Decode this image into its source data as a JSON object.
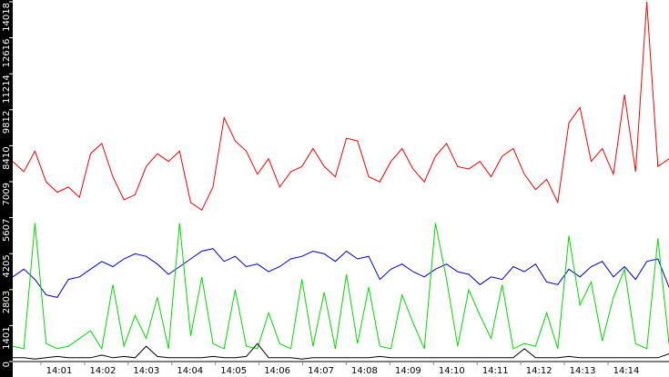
{
  "chart_data": {
    "type": "line",
    "ylim": [
      0,
      14018
    ],
    "yticks": [
      0,
      1401,
      2803,
      4205,
      5607,
      7009,
      8410,
      9812,
      11214,
      12616,
      14018
    ],
    "xtick_labels": [
      "14:01",
      "14:02",
      "14:03",
      "14:04",
      "14:05",
      "14:06",
      "14:07",
      "14:08",
      "14:09",
      "14:10",
      "14:11",
      "14:12",
      "14:13",
      "14:14"
    ],
    "series": [
      {
        "color": "#ff0000",
        "values": [
          7800,
          7400,
          8200,
          7000,
          6600,
          6800,
          6400,
          8100,
          8500,
          7200,
          6300,
          6500,
          7600,
          8100,
          7800,
          8200,
          6200,
          5900,
          6800,
          9500,
          8600,
          8200,
          7300,
          7900,
          6800,
          7400,
          7600,
          8300,
          7600,
          7200,
          8700,
          8600,
          7200,
          7000,
          7800,
          8300,
          7500,
          7000,
          8000,
          8500,
          7600,
          7500,
          7800,
          7200,
          8000,
          8300,
          7300,
          6700,
          7100,
          6200,
          9300,
          9900,
          7800,
          8300,
          7300,
          10400,
          7400,
          14018,
          7600,
          7900
        ]
      },
      {
        "color": "#0000cc",
        "values": [
          3300,
          3600,
          3200,
          2600,
          2500,
          3200,
          3300,
          3600,
          3900,
          3700,
          4000,
          4200,
          4100,
          3800,
          3400,
          3700,
          4000,
          4300,
          4400,
          3900,
          4100,
          3700,
          3800,
          3500,
          3700,
          4000,
          4100,
          4300,
          4200,
          3900,
          4300,
          4000,
          4100,
          3200,
          3600,
          3800,
          3500,
          3300,
          3600,
          3800,
          3500,
          3400,
          3000,
          3300,
          3200,
          3700,
          3500,
          3800,
          3100,
          3000,
          3600,
          3300,
          3700,
          3900,
          3300,
          3700,
          3200,
          3900,
          4000,
          2900
        ]
      },
      {
        "color": "#00dd00",
        "values": [
          600,
          500,
          5400,
          700,
          500,
          600,
          900,
          1200,
          500,
          3000,
          600,
          1800,
          900,
          2500,
          500,
          5400,
          1000,
          3300,
          700,
          500,
          2800,
          600,
          500,
          1900,
          700,
          500,
          3200,
          600,
          2700,
          500,
          3400,
          700,
          2900,
          600,
          500,
          2600,
          1500,
          500,
          5400,
          3200,
          600,
          2800,
          1800,
          900,
          3000,
          500,
          700,
          600,
          1900,
          500,
          4900,
          2200,
          3100,
          800,
          2500,
          3600,
          700,
          500,
          4800,
          700
        ]
      },
      {
        "color": "#000000",
        "values": [
          150,
          150,
          100,
          150,
          200,
          150,
          150,
          150,
          250,
          150,
          200,
          150,
          600,
          200,
          150,
          150,
          150,
          150,
          200,
          150,
          150,
          200,
          700,
          150,
          150,
          150,
          100,
          150,
          150,
          150,
          150,
          150,
          150,
          200,
          150,
          150,
          150,
          150,
          150,
          150,
          150,
          150,
          150,
          150,
          150,
          150,
          500,
          150,
          150,
          150,
          200,
          150,
          150,
          150,
          150,
          150,
          150,
          150,
          150,
          300
        ]
      }
    ]
  }
}
